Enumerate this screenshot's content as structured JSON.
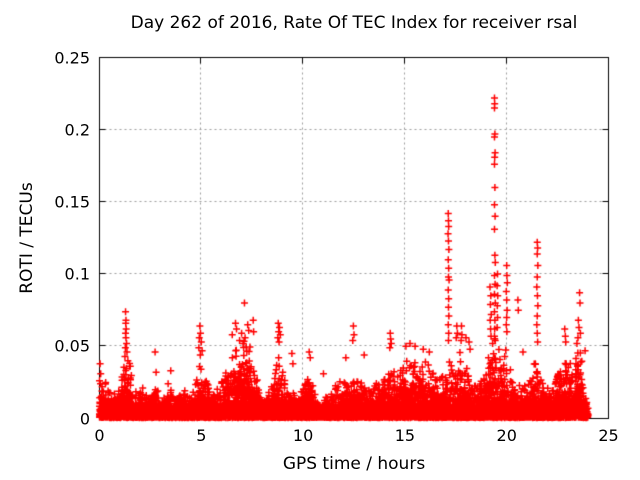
{
  "chart_data": {
    "type": "scatter",
    "title": "Day 262 of 2016, Rate Of TEC Index for receiver rsal",
    "xlabel": "GPS time / hours",
    "ylabel": "ROTI / TECUs",
    "xlim": [
      0,
      25
    ],
    "ylim": [
      0,
      0.25
    ],
    "x_ticks": [
      0,
      5,
      10,
      15,
      20,
      25
    ],
    "y_ticks": [
      0,
      0.05,
      0.1,
      0.15,
      0.2,
      0.25
    ],
    "x_tick_labels": [
      "0",
      "5",
      "10",
      "15",
      "20",
      "25"
    ],
    "y_tick_labels": [
      "0",
      "0.05",
      "0.1",
      "0.15",
      "0.2",
      "0.25"
    ],
    "grid": true,
    "legend_position": "none",
    "marker": {
      "shape": "plus",
      "color": "#ff0000",
      "half_size_px": 3.5,
      "stroke_px": 1.5
    },
    "colors": {
      "points": "#ff0000",
      "grid": "#9c9c9c",
      "border": "#000000",
      "text": "#000000",
      "background": "#ffffff"
    },
    "data_x_span": [
      0,
      24
    ],
    "seed": 2016,
    "point_counts": {
      "floor": 2600,
      "scatter": 6200
    },
    "baseline_envelope": [
      [
        0.0,
        0.03
      ],
      [
        0.3,
        0.026
      ],
      [
        0.7,
        0.018
      ],
      [
        1.0,
        0.02
      ],
      [
        1.15,
        0.034
      ],
      [
        1.3,
        0.048
      ],
      [
        1.5,
        0.038
      ],
      [
        1.7,
        0.018
      ],
      [
        2.1,
        0.022
      ],
      [
        2.5,
        0.015
      ],
      [
        2.75,
        0.024
      ],
      [
        3.0,
        0.016
      ],
      [
        3.4,
        0.026
      ],
      [
        3.7,
        0.016
      ],
      [
        4.1,
        0.021
      ],
      [
        4.5,
        0.016
      ],
      [
        4.8,
        0.028
      ],
      [
        5.0,
        0.044
      ],
      [
        5.2,
        0.032
      ],
      [
        5.5,
        0.02
      ],
      [
        5.8,
        0.022
      ],
      [
        6.1,
        0.028
      ],
      [
        6.5,
        0.044
      ],
      [
        6.9,
        0.052
      ],
      [
        7.1,
        0.055
      ],
      [
        7.4,
        0.05
      ],
      [
        7.6,
        0.038
      ],
      [
        7.9,
        0.016
      ],
      [
        8.2,
        0.015
      ],
      [
        8.5,
        0.028
      ],
      [
        8.8,
        0.044
      ],
      [
        9.1,
        0.028
      ],
      [
        9.4,
        0.02
      ],
      [
        9.7,
        0.016
      ],
      [
        10.0,
        0.022
      ],
      [
        10.3,
        0.034
      ],
      [
        10.6,
        0.018
      ],
      [
        10.9,
        0.013
      ],
      [
        11.3,
        0.017
      ],
      [
        11.7,
        0.025
      ],
      [
        12.1,
        0.028
      ],
      [
        12.5,
        0.033
      ],
      [
        12.8,
        0.029
      ],
      [
        13.1,
        0.022
      ],
      [
        13.5,
        0.028
      ],
      [
        13.9,
        0.024
      ],
      [
        14.3,
        0.04
      ],
      [
        14.6,
        0.028
      ],
      [
        15.0,
        0.04
      ],
      [
        15.3,
        0.044
      ],
      [
        15.7,
        0.038
      ],
      [
        16.0,
        0.04
      ],
      [
        16.4,
        0.033
      ],
      [
        16.7,
        0.029
      ],
      [
        17.0,
        0.034
      ],
      [
        17.15,
        0.046
      ],
      [
        17.4,
        0.032
      ],
      [
        17.7,
        0.046
      ],
      [
        18.0,
        0.043
      ],
      [
        18.4,
        0.024
      ],
      [
        18.7,
        0.029
      ],
      [
        19.0,
        0.038
      ],
      [
        19.2,
        0.05
      ],
      [
        19.4,
        0.058
      ],
      [
        19.6,
        0.048
      ],
      [
        19.9,
        0.052
      ],
      [
        20.1,
        0.038
      ],
      [
        20.4,
        0.024
      ],
      [
        20.7,
        0.028
      ],
      [
        21.0,
        0.024
      ],
      [
        21.4,
        0.04
      ],
      [
        21.6,
        0.036
      ],
      [
        21.9,
        0.02
      ],
      [
        22.3,
        0.024
      ],
      [
        22.6,
        0.034
      ],
      [
        22.9,
        0.042
      ],
      [
        23.2,
        0.038
      ],
      [
        23.45,
        0.053
      ],
      [
        23.65,
        0.046
      ],
      [
        23.85,
        0.024
      ],
      [
        24.0,
        0.011
      ]
    ],
    "spike_points": [
      [
        0.03,
        0.038
      ],
      [
        0.06,
        0.031
      ],
      [
        0.05,
        0.024
      ],
      [
        1.28,
        0.074
      ],
      [
        1.3,
        0.068
      ],
      [
        1.29,
        0.066
      ],
      [
        1.31,
        0.062
      ],
      [
        1.28,
        0.059
      ],
      [
        1.3,
        0.056
      ],
      [
        1.33,
        0.052
      ],
      [
        1.27,
        0.049
      ],
      [
        1.35,
        0.046
      ],
      [
        1.25,
        0.043
      ],
      [
        2.73,
        0.046
      ],
      [
        2.78,
        0.032
      ],
      [
        3.5,
        0.033
      ],
      [
        4.93,
        0.064
      ],
      [
        4.96,
        0.059
      ],
      [
        4.9,
        0.056
      ],
      [
        5.0,
        0.053
      ],
      [
        4.88,
        0.049
      ],
      [
        5.04,
        0.047
      ],
      [
        4.95,
        0.044
      ],
      [
        6.52,
        0.058
      ],
      [
        6.68,
        0.066
      ],
      [
        6.73,
        0.062
      ],
      [
        6.88,
        0.054
      ],
      [
        6.98,
        0.059
      ],
      [
        7.05,
        0.052
      ],
      [
        7.12,
        0.08
      ],
      [
        7.15,
        0.056
      ],
      [
        7.28,
        0.065
      ],
      [
        7.33,
        0.061
      ],
      [
        7.55,
        0.068
      ],
      [
        7.57,
        0.06
      ],
      [
        8.78,
        0.066
      ],
      [
        8.84,
        0.063
      ],
      [
        8.8,
        0.06
      ],
      [
        8.88,
        0.058
      ],
      [
        8.76,
        0.056
      ],
      [
        8.82,
        0.053
      ],
      [
        9.45,
        0.045
      ],
      [
        9.5,
        0.038
      ],
      [
        10.3,
        0.046
      ],
      [
        10.35,
        0.042
      ],
      [
        11.0,
        0.031
      ],
      [
        12.1,
        0.042
      ],
      [
        12.47,
        0.064
      ],
      [
        12.5,
        0.058
      ],
      [
        12.44,
        0.054
      ],
      [
        13.0,
        0.044
      ],
      [
        14.28,
        0.059
      ],
      [
        14.3,
        0.055
      ],
      [
        14.33,
        0.052
      ],
      [
        14.26,
        0.049
      ],
      [
        15.05,
        0.05
      ],
      [
        15.25,
        0.052
      ],
      [
        15.5,
        0.05
      ],
      [
        15.9,
        0.048
      ],
      [
        16.2,
        0.046
      ],
      [
        17.13,
        0.142
      ],
      [
        17.14,
        0.137
      ],
      [
        17.15,
        0.133
      ],
      [
        17.12,
        0.128
      ],
      [
        17.14,
        0.123
      ],
      [
        17.16,
        0.117
      ],
      [
        17.13,
        0.11
      ],
      [
        17.15,
        0.104
      ],
      [
        17.14,
        0.098
      ],
      [
        17.17,
        0.096
      ],
      [
        17.13,
        0.089
      ],
      [
        17.15,
        0.083
      ],
      [
        17.14,
        0.077
      ],
      [
        17.16,
        0.071
      ],
      [
        17.13,
        0.065
      ],
      [
        17.15,
        0.059
      ],
      [
        17.14,
        0.054
      ],
      [
        17.55,
        0.064
      ],
      [
        17.58,
        0.059
      ],
      [
        17.52,
        0.056
      ],
      [
        17.78,
        0.064
      ],
      [
        17.8,
        0.058
      ],
      [
        17.76,
        0.054
      ],
      [
        18.0,
        0.056
      ],
      [
        18.15,
        0.053
      ],
      [
        18.2,
        0.048
      ],
      [
        19.18,
        0.091
      ],
      [
        19.22,
        0.085
      ],
      [
        19.2,
        0.079
      ],
      [
        19.24,
        0.072
      ],
      [
        19.19,
        0.068
      ],
      [
        19.21,
        0.062
      ],
      [
        19.23,
        0.057
      ],
      [
        19.4,
        0.222
      ],
      [
        19.41,
        0.218
      ],
      [
        19.4,
        0.215
      ],
      [
        19.42,
        0.197
      ],
      [
        19.4,
        0.195
      ],
      [
        19.43,
        0.184
      ],
      [
        19.41,
        0.181
      ],
      [
        19.4,
        0.176
      ],
      [
        19.42,
        0.16
      ],
      [
        19.4,
        0.148
      ],
      [
        19.43,
        0.14
      ],
      [
        19.4,
        0.131
      ],
      [
        19.42,
        0.113
      ],
      [
        19.44,
        0.108
      ],
      [
        19.4,
        0.099
      ],
      [
        19.43,
        0.093
      ],
      [
        19.4,
        0.086
      ],
      [
        19.44,
        0.08
      ],
      [
        19.4,
        0.074
      ],
      [
        19.42,
        0.068
      ],
      [
        19.41,
        0.062
      ],
      [
        19.4,
        0.057
      ],
      [
        19.55,
        0.1
      ],
      [
        19.53,
        0.092
      ],
      [
        19.56,
        0.085
      ],
      [
        19.54,
        0.078
      ],
      [
        19.55,
        0.07
      ],
      [
        19.53,
        0.063
      ],
      [
        20.0,
        0.106
      ],
      [
        20.01,
        0.099
      ],
      [
        20.03,
        0.094
      ],
      [
        19.98,
        0.088
      ],
      [
        20.0,
        0.082
      ],
      [
        20.02,
        0.075
      ],
      [
        20.0,
        0.07
      ],
      [
        19.98,
        0.065
      ],
      [
        20.01,
        0.06
      ],
      [
        20.55,
        0.082
      ],
      [
        20.57,
        0.075
      ],
      [
        20.8,
        0.046
      ],
      [
        21.5,
        0.122
      ],
      [
        21.52,
        0.118
      ],
      [
        21.5,
        0.114
      ],
      [
        21.53,
        0.106
      ],
      [
        21.5,
        0.098
      ],
      [
        21.48,
        0.091
      ],
      [
        21.51,
        0.085
      ],
      [
        21.53,
        0.078
      ],
      [
        21.5,
        0.071
      ],
      [
        21.48,
        0.065
      ],
      [
        21.5,
        0.059
      ],
      [
        21.52,
        0.053
      ],
      [
        22.85,
        0.062
      ],
      [
        22.88,
        0.057
      ],
      [
        22.9,
        0.053
      ],
      [
        23.52,
        0.068
      ],
      [
        23.55,
        0.063
      ],
      [
        23.58,
        0.087
      ],
      [
        23.6,
        0.08
      ],
      [
        23.62,
        0.059
      ],
      [
        23.5,
        0.056
      ],
      [
        23.45,
        0.052
      ],
      [
        23.85,
        0.047
      ]
    ]
  }
}
